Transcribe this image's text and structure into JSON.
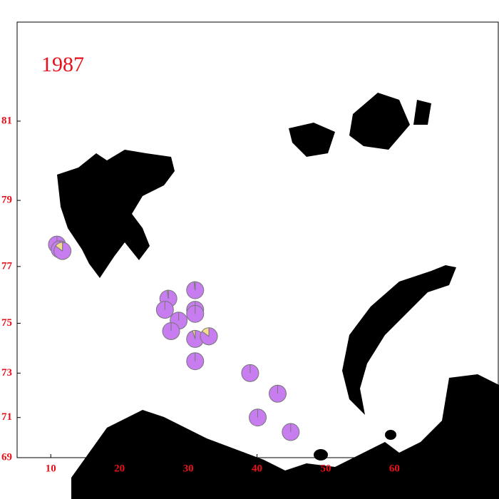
{
  "chart_data": {
    "type": "pie-map",
    "title": "1987",
    "projection": "mercator",
    "xlim": [
      5.1,
      75.2
    ],
    "ylim": [
      69,
      83
    ],
    "xticks": [
      10,
      20,
      30,
      40,
      50,
      60
    ],
    "yticks": [
      69,
      71,
      73,
      75,
      77,
      79,
      81
    ],
    "colors": [
      "#c77cf0",
      "#f5dc8c"
    ],
    "markers": [
      {
        "lon": 10.9,
        "lat": 77.7,
        "values": [
          100,
          0
        ]
      },
      {
        "lon": 11.3,
        "lat": 77.55,
        "values": [
          100,
          0
        ]
      },
      {
        "lon": 11.7,
        "lat": 77.5,
        "values": [
          85,
          15
        ]
      },
      {
        "lon": 27.1,
        "lat": 75.9,
        "values": [
          98,
          2
        ]
      },
      {
        "lon": 26.6,
        "lat": 75.5,
        "values": [
          100,
          0
        ]
      },
      {
        "lon": 31.0,
        "lat": 76.2,
        "values": [
          98,
          2
        ]
      },
      {
        "lon": 31.0,
        "lat": 75.5,
        "values": [
          100,
          0
        ]
      },
      {
        "lon": 31.0,
        "lat": 75.35,
        "values": [
          100,
          0
        ]
      },
      {
        "lon": 28.6,
        "lat": 75.1,
        "values": [
          100,
          0
        ]
      },
      {
        "lon": 27.5,
        "lat": 74.7,
        "values": [
          100,
          0
        ]
      },
      {
        "lon": 31.0,
        "lat": 74.4,
        "values": [
          95,
          5
        ]
      },
      {
        "lon": 33.0,
        "lat": 74.5,
        "values": [
          85,
          15
        ]
      },
      {
        "lon": 31.0,
        "lat": 73.5,
        "values": [
          100,
          0
        ]
      },
      {
        "lon": 39.0,
        "lat": 73.0,
        "values": [
          100,
          0
        ]
      },
      {
        "lon": 43.0,
        "lat": 72.1,
        "values": [
          100,
          0
        ]
      },
      {
        "lon": 40.1,
        "lat": 71.0,
        "values": [
          100,
          0
        ]
      },
      {
        "lon": 44.9,
        "lat": 70.3,
        "values": [
          100,
          0
        ]
      }
    ]
  }
}
